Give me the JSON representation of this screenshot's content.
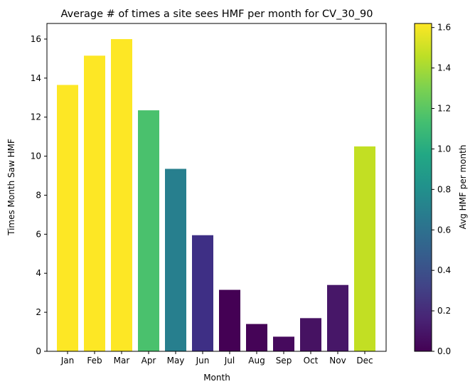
{
  "chart_data": {
    "type": "bar",
    "title": "Average # of times a site sees HMF per month for CV_30_90",
    "xlabel": "Month",
    "ylabel": "Times Month Saw HMF",
    "categories": [
      "Jan",
      "Feb",
      "Mar",
      "Apr",
      "May",
      "Jun",
      "Jul",
      "Aug",
      "Sep",
      "Oct",
      "Nov",
      "Dec"
    ],
    "values": [
      13.65,
      15.15,
      16.0,
      12.35,
      9.35,
      5.95,
      3.15,
      1.4,
      0.75,
      1.7,
      3.4,
      10.5
    ],
    "color_values": [
      1.62,
      1.62,
      1.62,
      1.2,
      0.62,
      0.2,
      0.02,
      0.03,
      0.04,
      0.05,
      0.1,
      1.48
    ],
    "colors": [
      "#fde725",
      "#fde725",
      "#fde725",
      "#4ac16d",
      "#277f8e",
      "#3e2f85",
      "#440154",
      "#450457",
      "#460a5d",
      "#461262",
      "#471768",
      "#c2df23"
    ],
    "ylim": [
      0,
      16.8
    ],
    "yticks": [
      0,
      2,
      4,
      6,
      8,
      10,
      12,
      14,
      16
    ],
    "colorbar": {
      "label": "Avg HMF per month",
      "range": [
        0,
        1.62
      ],
      "ticks": [
        0.0,
        0.2,
        0.4,
        0.6,
        0.8,
        1.0,
        1.2,
        1.4,
        1.6
      ],
      "tick_labels": [
        "0.0",
        "0.2",
        "0.4",
        "0.6",
        "0.8",
        "1.0",
        "1.2",
        "1.4",
        "1.6"
      ],
      "colormap": "viridis"
    },
    "grid": false,
    "legend": "none"
  }
}
